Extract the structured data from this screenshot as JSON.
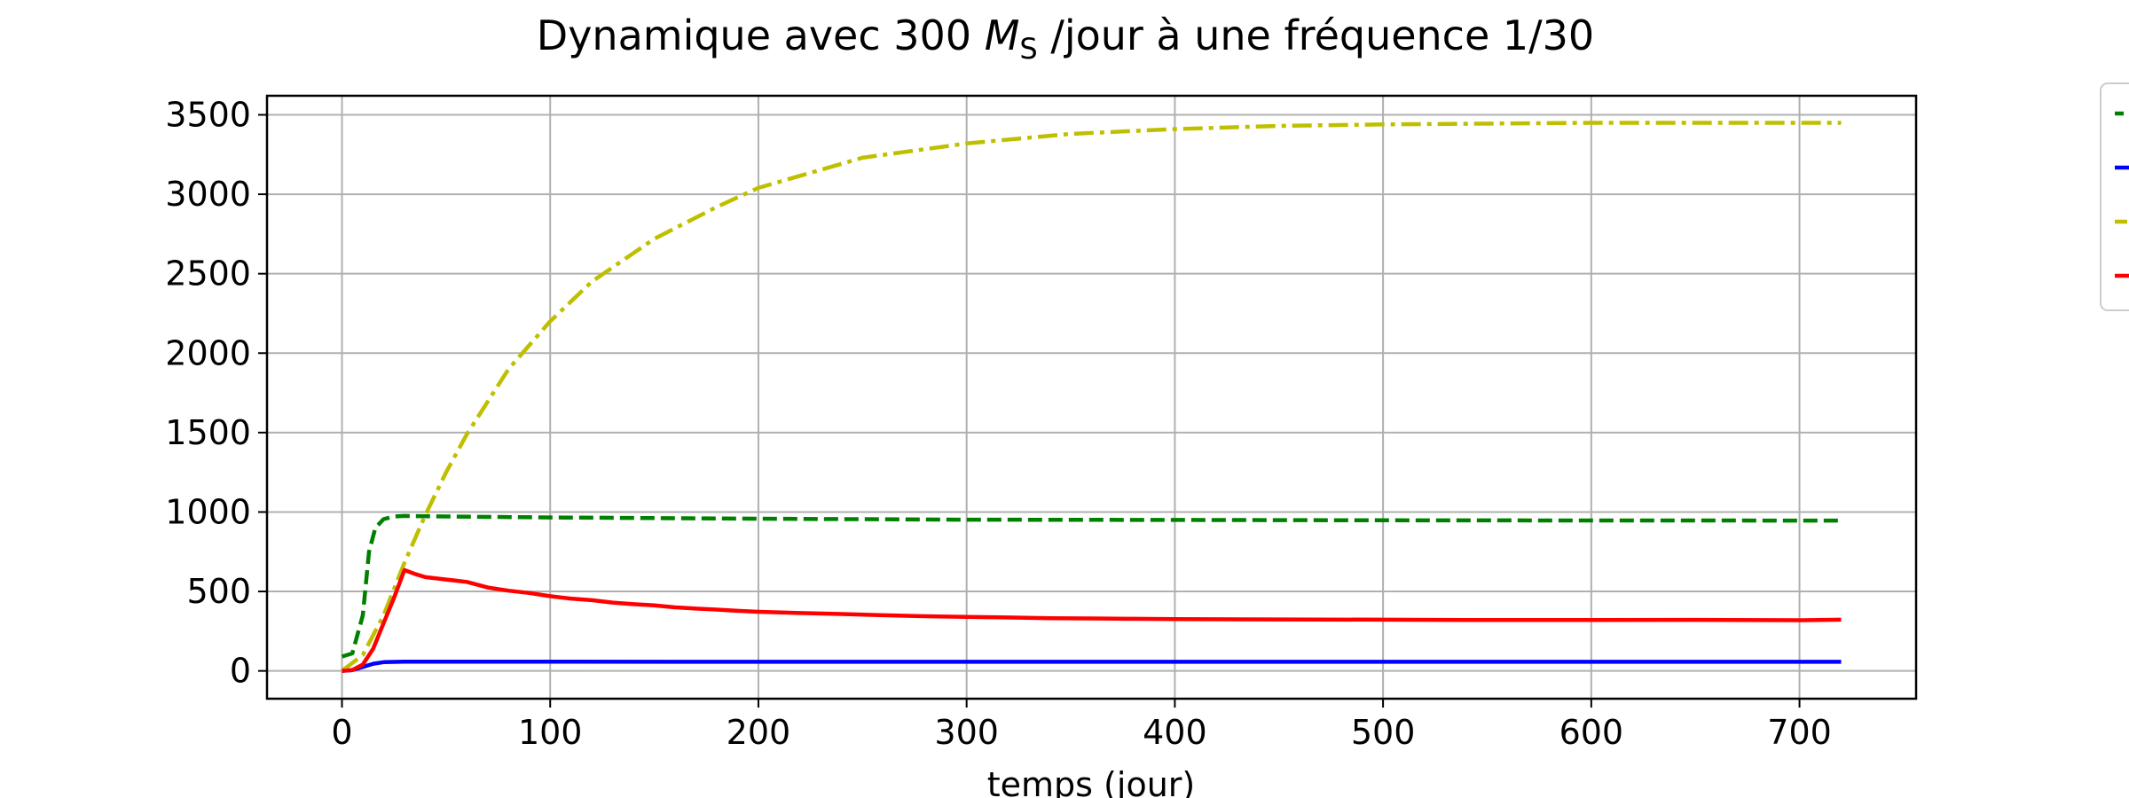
{
  "chart_data": {
    "type": "line",
    "title": "Dynamique avec 300 M_S /jour à une fréquence 1/30",
    "title_parts": {
      "before": "Dynamique avec 300 ",
      "symbol": "M",
      "subscript": "S",
      "after": " /jour à une fréquence 1/30"
    },
    "xlabel": "temps (jour)",
    "ylabel": "",
    "xlim": [
      -36,
      756
    ],
    "ylim": [
      -175,
      3620
    ],
    "xticks": [
      0,
      100,
      200,
      300,
      400,
      500,
      600,
      700
    ],
    "yticks": [
      0,
      500,
      1000,
      1500,
      2000,
      2500,
      3000,
      3500
    ],
    "grid": true,
    "legend": "outside-right",
    "series": [
      {
        "color": "#008000",
        "style": "dashed",
        "points": [
          [
            0,
            90
          ],
          [
            5,
            110
          ],
          [
            10,
            350
          ],
          [
            13,
            750
          ],
          [
            16,
            900
          ],
          [
            20,
            955
          ],
          [
            25,
            972
          ],
          [
            30,
            975
          ],
          [
            50,
            972
          ],
          [
            100,
            966
          ],
          [
            200,
            958
          ],
          [
            300,
            952
          ],
          [
            400,
            950
          ],
          [
            500,
            948
          ],
          [
            600,
            947
          ],
          [
            720,
            946
          ]
        ]
      },
      {
        "color": "#0000ff",
        "style": "solid",
        "points": [
          [
            0,
            0
          ],
          [
            5,
            5
          ],
          [
            10,
            25
          ],
          [
            15,
            45
          ],
          [
            20,
            55
          ],
          [
            30,
            58
          ],
          [
            100,
            58
          ],
          [
            300,
            57
          ],
          [
            500,
            57
          ],
          [
            720,
            57
          ]
        ]
      },
      {
        "color": "#bfbf00",
        "style": "dashdot",
        "points": [
          [
            0,
            0
          ],
          [
            10,
            100
          ],
          [
            20,
            350
          ],
          [
            30,
            680
          ],
          [
            40,
            980
          ],
          [
            50,
            1250
          ],
          [
            60,
            1490
          ],
          [
            80,
            1900
          ],
          [
            100,
            2200
          ],
          [
            120,
            2450
          ],
          [
            150,
            2720
          ],
          [
            180,
            2920
          ],
          [
            200,
            3040
          ],
          [
            250,
            3230
          ],
          [
            300,
            3320
          ],
          [
            350,
            3380
          ],
          [
            400,
            3410
          ],
          [
            450,
            3430
          ],
          [
            500,
            3440
          ],
          [
            600,
            3450
          ],
          [
            720,
            3450
          ]
        ]
      },
      {
        "color": "#ff0000",
        "style": "solid",
        "points": [
          [
            0,
            0
          ],
          [
            5,
            5
          ],
          [
            10,
            40
          ],
          [
            15,
            140
          ],
          [
            20,
            300
          ],
          [
            25,
            460
          ],
          [
            29,
            600
          ],
          [
            30,
            635
          ],
          [
            35,
            610
          ],
          [
            40,
            590
          ],
          [
            50,
            575
          ],
          [
            60,
            560
          ],
          [
            70,
            525
          ],
          [
            80,
            505
          ],
          [
            90,
            490
          ],
          [
            100,
            470
          ],
          [
            110,
            455
          ],
          [
            120,
            445
          ],
          [
            130,
            430
          ],
          [
            140,
            420
          ],
          [
            150,
            412
          ],
          [
            160,
            400
          ],
          [
            170,
            392
          ],
          [
            180,
            386
          ],
          [
            190,
            378
          ],
          [
            200,
            372
          ],
          [
            220,
            364
          ],
          [
            240,
            358
          ],
          [
            260,
            350
          ],
          [
            280,
            344
          ],
          [
            300,
            340
          ],
          [
            320,
            336
          ],
          [
            340,
            332
          ],
          [
            360,
            330
          ],
          [
            380,
            328
          ],
          [
            400,
            326
          ],
          [
            450,
            324
          ],
          [
            500,
            322
          ],
          [
            550,
            320
          ],
          [
            600,
            320
          ],
          [
            650,
            321
          ],
          [
            700,
            319
          ],
          [
            720,
            322
          ]
        ]
      }
    ]
  }
}
